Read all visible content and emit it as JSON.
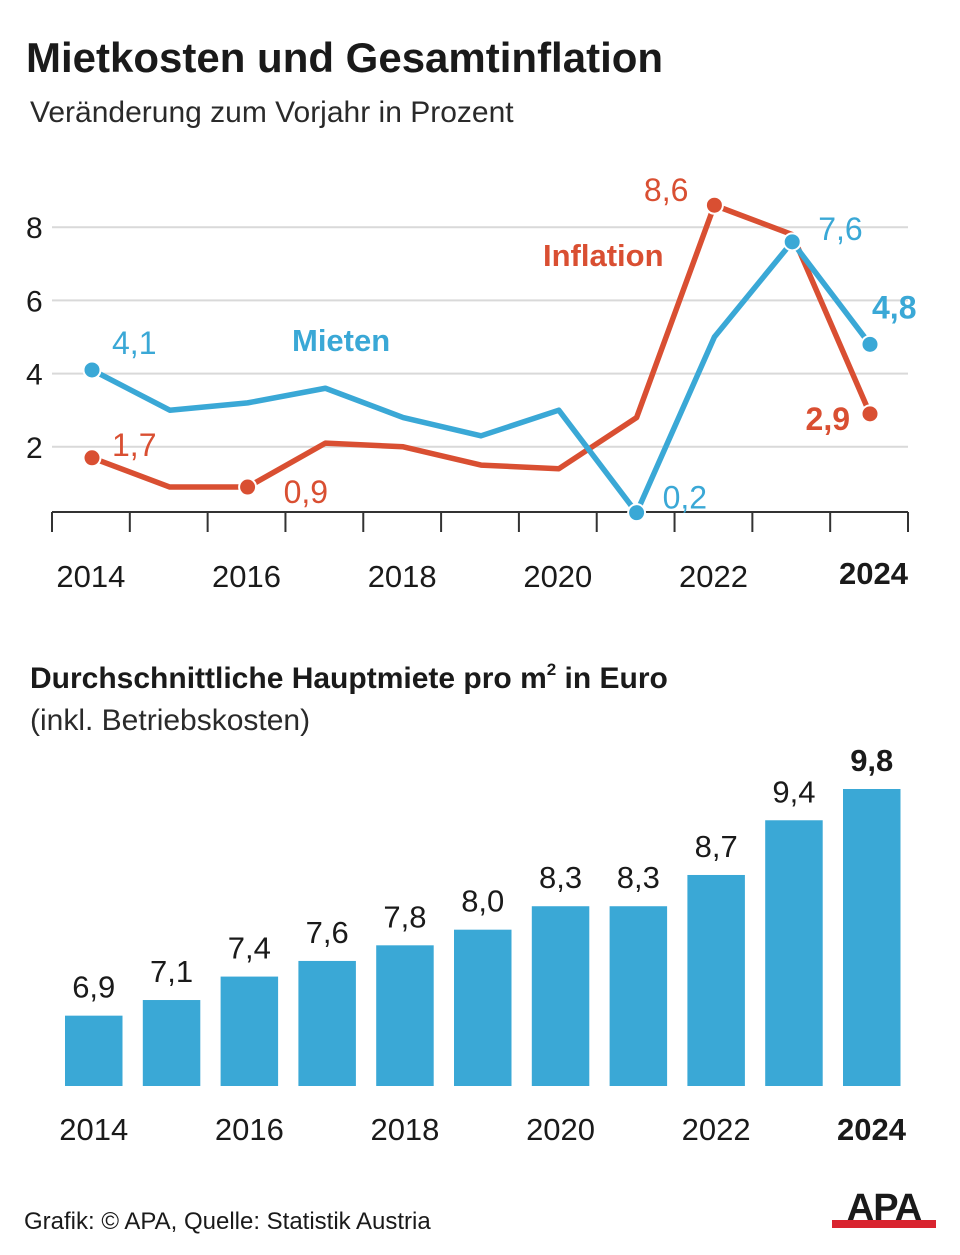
{
  "title": "Mietkosten und Gesamtinflation",
  "subtitle": "Veränderung zum Vorjahr in Prozent",
  "colors": {
    "inflation": "#d94f32",
    "mieten": "#3aa8d6",
    "bar": "#3aa8d6",
    "grid": "#d9d9d9",
    "axis": "#333333",
    "apa_red": "#d9242f"
  },
  "chart_data": [
    {
      "type": "line",
      "title": "Mietkosten und Gesamtinflation",
      "subtitle": "Veränderung zum Vorjahr in Prozent",
      "x": [
        2014,
        2015,
        2016,
        2017,
        2018,
        2019,
        2020,
        2021,
        2022,
        2023,
        2024
      ],
      "xlabel": "",
      "ylabel": "",
      "ylim": [
        0,
        9
      ],
      "yticks": [
        "2",
        "4",
        "6",
        "8"
      ],
      "xtick_labels": [
        "2014",
        "2016",
        "2018",
        "2020",
        "2022",
        "2024"
      ],
      "grid": true,
      "series": [
        {
          "name": "Inflation",
          "values": [
            1.7,
            0.9,
            0.9,
            2.1,
            2.0,
            1.5,
            1.4,
            2.8,
            8.6,
            7.8,
            2.9
          ],
          "labels": [
            {
              "index": 0,
              "text": "1,7"
            },
            {
              "index": 2,
              "text": "0,9"
            },
            {
              "index": 8,
              "text": "8,6"
            },
            {
              "index": 10,
              "text": "2,9"
            }
          ]
        },
        {
          "name": "Mieten",
          "values": [
            4.1,
            3.0,
            3.2,
            3.6,
            2.8,
            2.3,
            3.0,
            0.2,
            5.0,
            7.6,
            4.8
          ],
          "labels": [
            {
              "index": 0,
              "text": "4,1"
            },
            {
              "index": 7,
              "text": "0,2"
            },
            {
              "index": 9,
              "text": "7,6"
            },
            {
              "index": 10,
              "text": "4,8"
            }
          ]
        }
      ]
    },
    {
      "type": "bar",
      "title": "Durchschnittliche Hauptmiete pro m² in Euro",
      "subtitle": "(inkl. Betriebskosten)",
      "categories": [
        "2014",
        "2015",
        "2016",
        "2017",
        "2018",
        "2019",
        "2020",
        "2021",
        "2022",
        "2023",
        "2024"
      ],
      "values": [
        6.9,
        7.1,
        7.4,
        7.6,
        7.8,
        8.0,
        8.3,
        8.3,
        8.7,
        9.4,
        9.8
      ],
      "value_labels": [
        "6,9",
        "7,1",
        "7,4",
        "7,6",
        "7,8",
        "8,0",
        "8,3",
        "8,3",
        "8,7",
        "9,4",
        "9,8"
      ],
      "xtick_labels": [
        "2014",
        "2016",
        "2018",
        "2020",
        "2022",
        "2024"
      ],
      "ylim": [
        0,
        9.8
      ]
    }
  ],
  "bar_title": {
    "main": "Durchschnittliche Hauptmiete pro m",
    "sup": "2",
    "rest": " in Euro"
  },
  "bar_subtitle": "(inkl. Betriebskosten)",
  "footer": "Grafik: © APA, Quelle: Statistik Austria",
  "logo_text": "APA"
}
